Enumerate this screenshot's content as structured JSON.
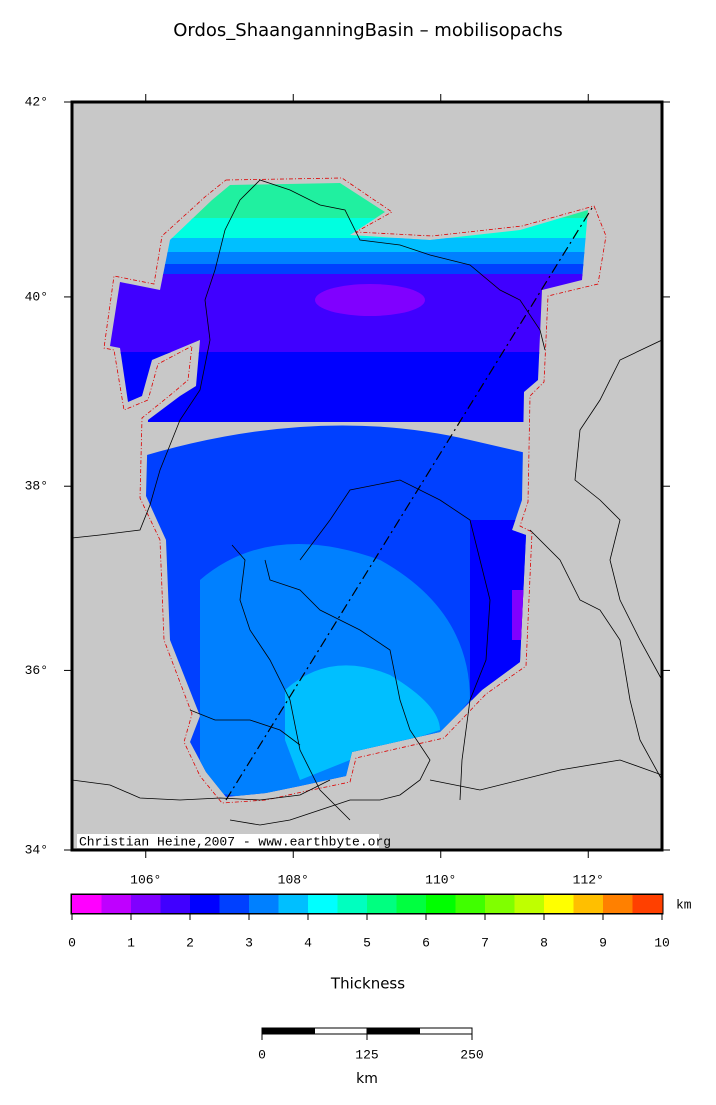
{
  "title": "Ordos_ShaanganningBasin – mobilisopachs",
  "map": {
    "xlim": [
      105,
      113
    ],
    "ylim": [
      34,
      42
    ],
    "xticks": [
      {
        "value": 106,
        "label": "106°"
      },
      {
        "value": 108,
        "label": "108°"
      },
      {
        "value": 110,
        "label": "110°"
      },
      {
        "value": 112,
        "label": "112°"
      }
    ],
    "yticks": [
      {
        "value": 42,
        "label": "42°"
      },
      {
        "value": 40,
        "label": "40°"
      },
      {
        "value": 38,
        "label": "38°"
      },
      {
        "value": 36,
        "label": "36°"
      },
      {
        "value": 34,
        "label": "34°"
      }
    ],
    "credit": "Christian Heine,2007 - www.earthbyte.org"
  },
  "colorbar": {
    "label": "Thickness",
    "unit": "km",
    "lim": [
      0,
      10
    ],
    "ticks": [
      0,
      1,
      2,
      3,
      4,
      5,
      6,
      7,
      8,
      9,
      10
    ],
    "colors": [
      "#ff00ff",
      "#bf00ff",
      "#8000ff",
      "#4000ff",
      "#0000ff",
      "#0040ff",
      "#0080ff",
      "#00bfff",
      "#00ffff",
      "#00ffbf",
      "#00ff80",
      "#00ff40",
      "#00ff00",
      "#40ff00",
      "#80ff00",
      "#bfff00",
      "#ffff00",
      "#ffbf00",
      "#ff8000",
      "#ff4000"
    ]
  },
  "scalebar": {
    "unit": "km",
    "lim": [
      0,
      250
    ],
    "ticks": [
      0,
      125,
      250
    ]
  }
}
